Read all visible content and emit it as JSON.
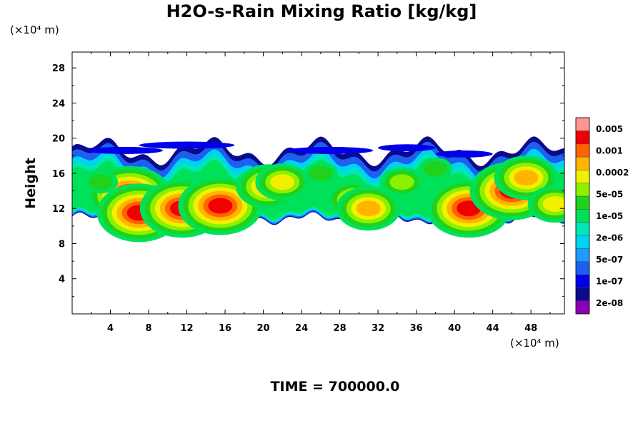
{
  "chart_data": {
    "type": "heatmap",
    "title": "H2O-s-Rain Mixing Ratio [kg/kg]",
    "xlabel": "",
    "ylabel": "Height",
    "x_unit": "(×10⁴ m)",
    "y_unit": "(×10⁴ m)",
    "xlim": [
      0,
      51.5
    ],
    "ylim": [
      0,
      29.8
    ],
    "x_ticks": [
      4,
      8,
      12,
      16,
      20,
      24,
      28,
      32,
      36,
      40,
      44,
      48
    ],
    "y_ticks": [
      4,
      8,
      12,
      16,
      20,
      24,
      28
    ],
    "colorbar": {
      "labels": [
        "0.005",
        "0.001",
        "0.0002",
        "5e-05",
        "1e-05",
        "2e-06",
        "5e-07",
        "1e-07",
        "2e-08"
      ],
      "colors": [
        "#8a00b4",
        "#0a0a8c",
        "#0000e8",
        "#1e5ff0",
        "#1e9bff",
        "#00d2f5",
        "#00e6b4",
        "#00e15a",
        "#1ed21e",
        "#8cf000",
        "#f0f000",
        "#ffb400",
        "#ff6400",
        "#f00000",
        "#ff9696"
      ]
    },
    "cloud_layer": {
      "base_height": 10.5,
      "top_height": 19.8,
      "x_start": 0,
      "x_end": 51.5
    },
    "features": [
      {
        "x": 6.0,
        "y": 13.5,
        "level": 13
      },
      {
        "x": 7.0,
        "y": 11.5,
        "level": 13
      },
      {
        "x": 11.5,
        "y": 12.0,
        "level": 13
      },
      {
        "x": 15.5,
        "y": 12.3,
        "level": 13
      },
      {
        "x": 20.5,
        "y": 14.5,
        "level": 11
      },
      {
        "x": 22.0,
        "y": 15.0,
        "level": 10
      },
      {
        "x": 29.5,
        "y": 13.0,
        "level": 10
      },
      {
        "x": 31.0,
        "y": 12.0,
        "level": 11
      },
      {
        "x": 34.5,
        "y": 15.0,
        "level": 9
      },
      {
        "x": 41.5,
        "y": 12.0,
        "level": 13
      },
      {
        "x": 46.0,
        "y": 14.0,
        "level": 13
      },
      {
        "x": 47.5,
        "y": 15.5,
        "level": 11
      },
      {
        "x": 3.0,
        "y": 15.0,
        "level": 8
      },
      {
        "x": 26.0,
        "y": 16.0,
        "level": 8
      },
      {
        "x": 38.0,
        "y": 16.5,
        "level": 8
      },
      {
        "x": 50.5,
        "y": 12.5,
        "level": 10
      }
    ]
  },
  "time_label": "TIME = 700000.0"
}
